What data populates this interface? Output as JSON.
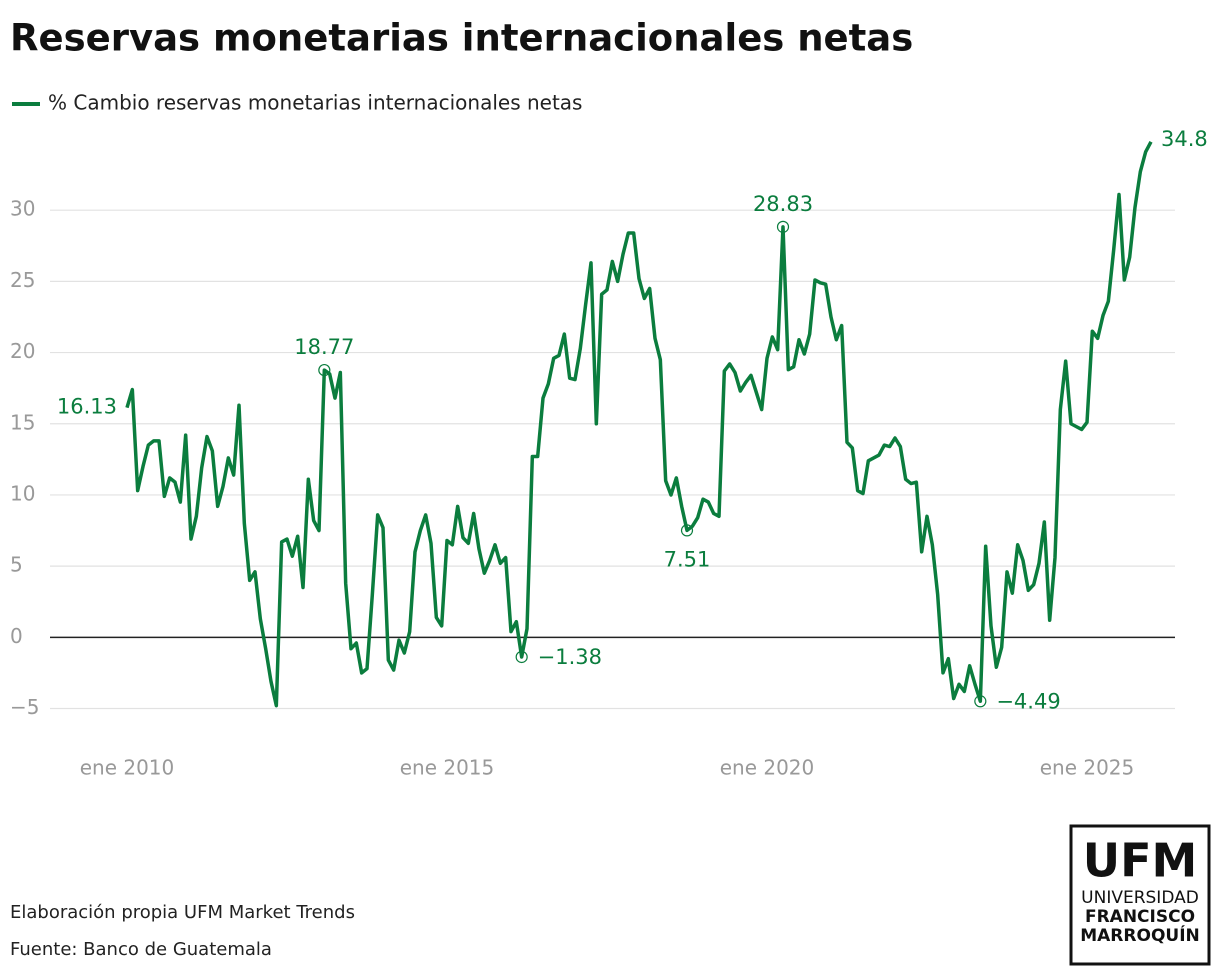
{
  "chart_data": {
    "type": "line",
    "title": "Reservas monetarias internacionales netas",
    "source_lines": [
      "Elaboración propia UFM Market Trends",
      "Fuente: Banco de Guatemala"
    ],
    "logo": [
      "UFM",
      "UNIVERSIDAD",
      "FRANCISCO",
      "MARROQUÍN"
    ],
    "x": [
      "2010-01",
      "2010-02",
      "2010-03",
      "2010-04",
      "2010-05",
      "2010-06",
      "2010-07",
      "2010-08",
      "2010-09",
      "2010-10",
      "2010-11",
      "2010-12",
      "2011-01",
      "2011-02",
      "2011-03",
      "2011-04",
      "2011-05",
      "2011-06",
      "2011-07",
      "2011-08",
      "2011-09",
      "2011-10",
      "2011-11",
      "2011-12",
      "2012-01",
      "2012-02",
      "2012-03",
      "2012-04",
      "2012-05",
      "2012-06",
      "2012-07",
      "2012-08",
      "2012-09",
      "2012-10",
      "2012-11",
      "2012-12",
      "2013-01",
      "2013-02",
      "2013-03",
      "2013-04",
      "2013-05",
      "2013-06",
      "2013-07",
      "2013-08",
      "2013-09",
      "2013-10",
      "2013-11",
      "2013-12",
      "2014-01",
      "2014-02",
      "2014-03",
      "2014-04",
      "2014-05",
      "2014-06",
      "2014-07",
      "2014-08",
      "2014-09",
      "2014-10",
      "2014-11",
      "2014-12",
      "2015-01",
      "2015-02",
      "2015-03",
      "2015-04",
      "2015-05",
      "2015-06",
      "2015-07",
      "2015-08",
      "2015-09",
      "2015-10",
      "2015-11",
      "2015-12",
      "2016-01",
      "2016-02",
      "2016-03",
      "2016-04",
      "2016-05",
      "2016-06",
      "2016-07",
      "2016-08",
      "2016-09",
      "2016-10",
      "2016-11",
      "2016-12",
      "2017-01",
      "2017-02",
      "2017-03",
      "2017-04",
      "2017-05",
      "2017-06",
      "2017-07",
      "2017-08",
      "2017-09",
      "2017-10",
      "2017-11",
      "2017-12",
      "2018-01",
      "2018-02",
      "2018-03",
      "2018-04",
      "2018-05",
      "2018-06",
      "2018-07",
      "2018-08",
      "2018-09",
      "2018-10",
      "2018-11",
      "2018-12",
      "2019-01",
      "2019-02",
      "2019-03",
      "2019-04",
      "2019-05",
      "2019-06",
      "2019-07",
      "2019-08",
      "2019-09",
      "2019-10",
      "2019-11",
      "2019-12",
      "2020-01",
      "2020-02",
      "2020-03",
      "2020-04",
      "2020-05",
      "2020-06",
      "2020-07",
      "2020-08",
      "2020-09",
      "2020-10",
      "2020-11",
      "2020-12",
      "2021-01",
      "2021-02",
      "2021-03",
      "2021-04",
      "2021-05",
      "2021-06",
      "2021-07",
      "2021-08",
      "2021-09",
      "2021-10",
      "2021-11",
      "2021-12",
      "2022-01",
      "2022-02",
      "2022-03",
      "2022-04",
      "2022-05",
      "2022-06",
      "2022-07",
      "2022-08",
      "2022-09",
      "2022-10",
      "2022-11",
      "2022-12",
      "2023-01",
      "2023-02",
      "2023-03",
      "2023-04",
      "2023-05",
      "2023-06",
      "2023-07",
      "2023-08",
      "2023-09",
      "2023-10",
      "2023-11",
      "2023-12",
      "2024-01",
      "2024-02",
      "2024-03",
      "2024-04",
      "2024-05",
      "2024-06",
      "2024-07",
      "2024-08",
      "2024-09",
      "2024-10",
      "2024-11",
      "2024-12",
      "2025-01",
      "2025-02",
      "2025-03",
      "2025-04",
      "2025-05",
      "2025-06",
      "2025-07",
      "2025-08",
      "2025-09",
      "2025-10",
      "2025-11",
      "2025-12",
      "2026-01"
    ],
    "series": [
      {
        "name": "% Cambio reservas monetarias internacionales netas",
        "color": "#0b7d3e",
        "values": [
          16.13,
          17.4,
          10.3,
          12,
          13.5,
          13.8,
          13.8,
          9.9,
          11.2,
          10.9,
          9.5,
          14.2,
          6.9,
          8.5,
          11.9,
          14.1,
          13.1,
          9.2,
          10.6,
          12.6,
          11.4,
          16.3,
          8,
          4,
          4.6,
          1.3,
          -0.8,
          -3.1,
          -4.8,
          6.7,
          6.9,
          5.7,
          7.1,
          3.5,
          11.1,
          8.2,
          7.5,
          18.77,
          18.5,
          16.8,
          18.6,
          3.8,
          -0.8,
          -0.4,
          -2.5,
          -2.2,
          3,
          8.6,
          7.7,
          -1.6,
          -2.3,
          -0.2,
          -1.1,
          0.4,
          6,
          7.5,
          8.6,
          6.6,
          1.4,
          0.8,
          6.8,
          6.5,
          9.2,
          7,
          6.6,
          8.7,
          6.2,
          4.5,
          5.4,
          6.5,
          5.2,
          5.6,
          0.4,
          1.1,
          -1.38,
          0.6,
          12.7,
          12.7,
          16.8,
          17.8,
          19.6,
          19.8,
          21.3,
          18.2,
          18.1,
          20.3,
          23.4,
          26.3,
          15,
          24.1,
          24.4,
          26.4,
          25,
          26.9,
          28.4,
          28.4,
          25.2,
          23.8,
          24.5,
          21,
          19.5,
          11,
          10,
          11.2,
          9.2,
          7.51,
          7.8,
          8.4,
          9.7,
          9.5,
          8.7,
          8.5,
          18.7,
          19.2,
          18.6,
          17.3,
          17.9,
          18.4,
          17.2,
          16,
          19.6,
          21.1,
          20.2,
          28.83,
          18.8,
          19,
          20.9,
          19.9,
          21.3,
          25.1,
          24.9,
          24.8,
          22.5,
          20.9,
          21.9,
          13.7,
          13.3,
          10.3,
          10.1,
          12.4,
          12.6,
          12.8,
          13.5,
          13.4,
          14,
          13.4,
          11.1,
          10.8,
          10.9,
          6,
          8.5,
          6.5,
          3,
          -2.5,
          -1.5,
          -4.3,
          -3.3,
          -3.8,
          -2,
          -3.3,
          -4.49,
          6.4,
          0.8,
          -2.1,
          -0.7,
          4.6,
          3.1,
          6.5,
          5.4,
          3.3,
          3.7,
          5.2,
          8.1,
          1.2,
          5.6,
          16,
          19.4,
          15,
          14.8,
          14.6,
          15.1,
          21.5,
          21,
          22.6,
          23.6,
          27.2,
          31.1,
          25.1,
          26.7,
          30.2,
          32.7,
          34.1,
          34.8
        ],
        "value_labels": [
          "16.13",
          null,
          null,
          null,
          null,
          null,
          null,
          null,
          null,
          null,
          null,
          null,
          null,
          null,
          null,
          null,
          null,
          null,
          null,
          null,
          null,
          null,
          null,
          null,
          null,
          null,
          null,
          null,
          null,
          null,
          null,
          null,
          null,
          null,
          null,
          null,
          null,
          "18.77",
          null,
          null,
          null,
          null,
          null,
          null,
          null,
          null,
          null,
          null,
          null,
          null,
          null,
          null,
          null,
          null,
          null,
          null,
          null,
          null,
          null,
          null,
          null,
          null,
          null,
          null,
          null,
          null,
          null,
          null,
          null,
          null,
          null,
          null,
          null,
          null,
          "−1.38",
          null,
          null,
          null,
          null,
          null,
          null,
          null,
          null,
          null,
          null,
          null,
          null,
          null,
          null,
          null,
          null,
          null,
          null,
          null,
          null,
          null,
          null,
          null,
          null,
          null,
          null,
          null,
          null,
          null,
          null,
          "7.51",
          null,
          null,
          null,
          null,
          null,
          null,
          null,
          null,
          null,
          null,
          null,
          null,
          null,
          null,
          null,
          null,
          null,
          "28.83",
          null,
          null,
          null,
          null,
          null,
          null,
          null,
          null,
          null,
          null,
          null,
          null,
          null,
          null,
          null,
          null,
          null,
          null,
          null,
          null,
          null,
          null,
          null,
          null,
          null,
          null,
          null,
          null,
          null,
          null,
          null,
          null,
          null,
          null,
          null,
          null,
          "−4.49",
          null,
          null,
          null,
          null,
          null,
          null,
          null,
          null,
          null,
          null,
          null,
          null,
          null,
          null,
          null,
          null,
          null,
          null,
          null,
          null,
          null,
          null,
          null,
          null,
          null,
          null,
          null,
          null,
          null,
          null,
          null,
          "34.8"
        ]
      }
    ],
    "ylim": [
      -7,
      35
    ],
    "yticks": [
      {
        "value": -5,
        "label": "−5"
      },
      0,
      5,
      10,
      15,
      20,
      25,
      30
    ],
    "xticks": [
      {
        "value": "2010-01",
        "label": "ene 2010"
      },
      {
        "value": "2015-01",
        "label": "ene 2015"
      },
      {
        "value": "2020-01",
        "label": "ene 2020"
      },
      {
        "value": "2025-01",
        "label": "ene 2025"
      }
    ],
    "grid": true
  }
}
